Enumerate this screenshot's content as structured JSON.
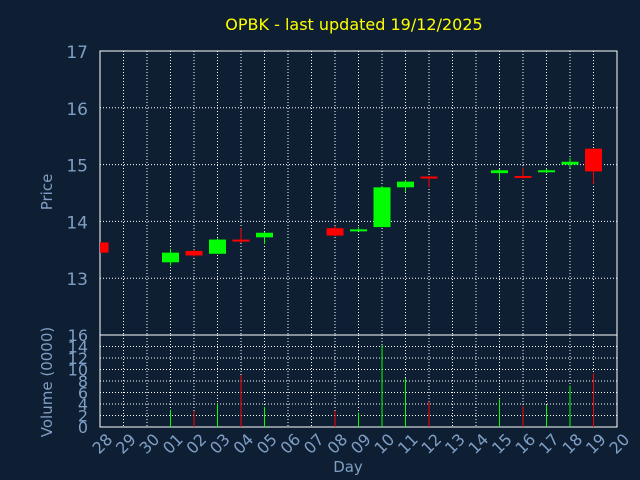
{
  "chart_data": [
    {
      "type": "candlestick",
      "title": "OPBK - last updated 19/12/2025",
      "ylabel": "Price",
      "ylim": [
        12,
        17
      ],
      "yticks": [
        13,
        14,
        15,
        16,
        17
      ],
      "grid": true,
      "candles": [
        {
          "day": "28",
          "open": 13.63,
          "high": 13.63,
          "low": 13.45,
          "close": 13.45
        },
        {
          "day": "01",
          "open": 13.28,
          "high": 13.52,
          "low": 13.22,
          "close": 13.45
        },
        {
          "day": "02",
          "open": 13.48,
          "high": 13.5,
          "low": 13.38,
          "close": 13.4
        },
        {
          "day": "03",
          "open": 13.43,
          "high": 13.7,
          "low": 13.43,
          "close": 13.68
        },
        {
          "day": "04",
          "open": 13.68,
          "high": 13.88,
          "low": 13.62,
          "close": 13.65
        },
        {
          "day": "05",
          "open": 13.72,
          "high": 13.82,
          "low": 13.6,
          "close": 13.8
        },
        {
          "day": "08",
          "open": 13.88,
          "high": 13.92,
          "low": 13.74,
          "close": 13.75
        },
        {
          "day": "09",
          "open": 13.84,
          "high": 13.9,
          "low": 13.83,
          "close": 13.86
        },
        {
          "day": "10",
          "open": 13.9,
          "high": 14.62,
          "low": 13.9,
          "close": 14.6
        },
        {
          "day": "11",
          "open": 14.6,
          "high": 14.73,
          "low": 14.52,
          "close": 14.7
        },
        {
          "day": "12",
          "open": 14.79,
          "high": 14.8,
          "low": 14.6,
          "close": 14.76
        },
        {
          "day": "15",
          "open": 14.85,
          "high": 14.92,
          "low": 14.73,
          "close": 14.9
        },
        {
          "day": "16",
          "open": 14.8,
          "high": 14.95,
          "low": 14.75,
          "close": 14.78
        },
        {
          "day": "17",
          "open": 14.88,
          "high": 14.93,
          "low": 14.85,
          "close": 14.9
        },
        {
          "day": "18",
          "open": 15.0,
          "high": 15.12,
          "low": 14.94,
          "close": 15.05
        },
        {
          "day": "19",
          "open": 15.28,
          "high": 15.28,
          "low": 14.66,
          "close": 14.88
        }
      ]
    },
    {
      "type": "bar",
      "xlabel": "Day",
      "ylabel": "Volume (0000)",
      "ylim": [
        0,
        16
      ],
      "yticks": [
        0,
        2,
        4,
        6,
        8,
        10,
        12,
        14,
        16
      ],
      "grid": true,
      "categories": [
        "28",
        "29",
        "30",
        "01",
        "02",
        "03",
        "04",
        "05",
        "06",
        "07",
        "08",
        "09",
        "10",
        "11",
        "12",
        "13",
        "14",
        "15",
        "16",
        "17",
        "18",
        "19",
        "20"
      ],
      "bars": [
        {
          "day": "01",
          "value": 3.0,
          "direction": "up"
        },
        {
          "day": "02",
          "value": 2.8,
          "direction": "down"
        },
        {
          "day": "03",
          "value": 4.0,
          "direction": "up"
        },
        {
          "day": "04",
          "value": 9.0,
          "direction": "down"
        },
        {
          "day": "05",
          "value": 3.5,
          "direction": "up"
        },
        {
          "day": "08",
          "value": 2.8,
          "direction": "down"
        },
        {
          "day": "09",
          "value": 2.5,
          "direction": "up"
        },
        {
          "day": "10",
          "value": 14.2,
          "direction": "up"
        },
        {
          "day": "11",
          "value": 8.5,
          "direction": "up"
        },
        {
          "day": "12",
          "value": 4.4,
          "direction": "down"
        },
        {
          "day": "15",
          "value": 4.8,
          "direction": "up"
        },
        {
          "day": "16",
          "value": 3.6,
          "direction": "down"
        },
        {
          "day": "17",
          "value": 3.8,
          "direction": "up"
        },
        {
          "day": "18",
          "value": 7.2,
          "direction": "up"
        },
        {
          "day": "19",
          "value": 9.3,
          "direction": "down"
        }
      ]
    }
  ],
  "colors": {
    "background": "#0f1f33",
    "title": "#ffff00",
    "axis_text": "#7f9fc5",
    "frame": "#ffffff",
    "grid": "#ffffff",
    "up": "#00ff00",
    "down": "#ff0000"
  }
}
